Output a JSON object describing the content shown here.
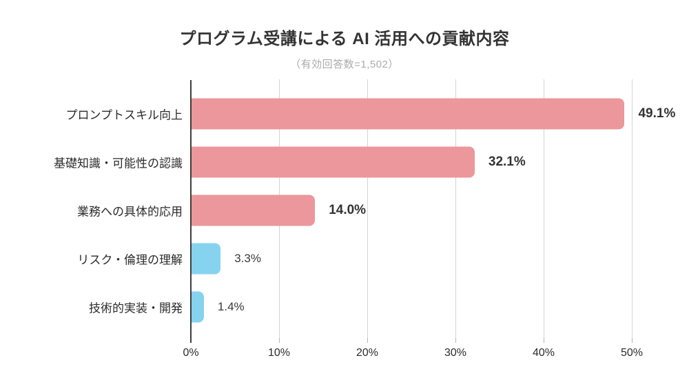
{
  "chart_data": {
    "type": "bar",
    "orientation": "horizontal",
    "title": "プログラム受講による AI 活用への貢献内容",
    "subtitle": "（有効回答数=1,502）",
    "categories": [
      "プロンプトスキル向上",
      "基礎知識・可能性の認識",
      "業務への具体的応用",
      "リスク・倫理の理解",
      "技術的実装・開発"
    ],
    "values": [
      49.1,
      32.1,
      14.0,
      3.3,
      1.4
    ],
    "value_labels": [
      "49.1%",
      "32.1%",
      "14.0%",
      "3.3%",
      "1.4%"
    ],
    "value_label_bold": [
      true,
      true,
      true,
      false,
      false
    ],
    "bar_colors": [
      "#EB979B",
      "#EB979B",
      "#EB979B",
      "#86D3F0",
      "#86D3F0"
    ],
    "xlabel": "",
    "ylabel": "",
    "xlim": [
      0,
      50
    ],
    "x_ticks": [
      "0%",
      "10%",
      "20%",
      "30%",
      "40%",
      "50%"
    ],
    "x_tick_values": [
      0,
      10,
      20,
      30,
      40,
      50
    ],
    "grid": "vertical-only",
    "legend": "none"
  },
  "colors": {
    "bar_pink": "#EB979B",
    "bar_blue": "#86D3F0",
    "axis_line": "#3d3d3d",
    "gridline": "#d4d4d4",
    "title_text": "#333333",
    "subtitle_text": "#ababab",
    "label_text": "#2b2b2b"
  }
}
